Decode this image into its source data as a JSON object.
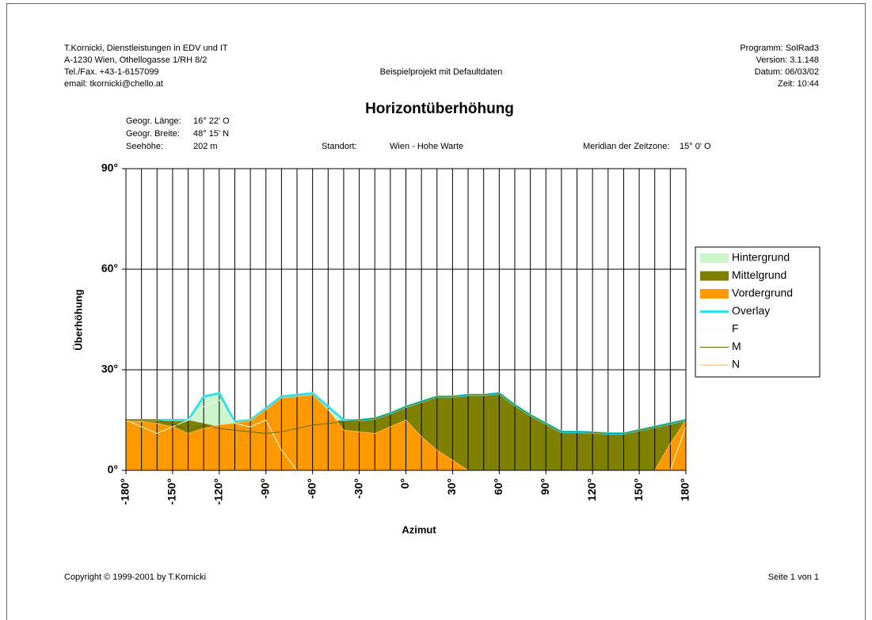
{
  "header": {
    "left": [
      "T.Kornicki, Dienstleistungen in EDV und IT",
      "A-1230 Wien, Othellogasse 1/RH 8/2",
      "Tel./Fax. +43-1-6157099",
      "email: tkornicki@chello.at"
    ],
    "center": "Beispielprojekt mit Defaultdaten",
    "right": [
      "Programm: SolRad3",
      "Version: 3.1.148",
      "Datum: 06/03/02",
      "Zeit: 10:44"
    ]
  },
  "info": {
    "laenge_label": "Geogr. Länge:",
    "laenge": "16° 22' O",
    "breite_label": "Geogr. Breite:",
    "breite": "48° 15' N",
    "hoehe_label": "Seehöhe:",
    "hoehe": "202 m",
    "standort_label": "Standort:",
    "standort": "Wien - Hohe Warte",
    "meridian_label": "Meridian der Zeitzone:",
    "meridian": "15° 0' O"
  },
  "chart_data": {
    "type": "area",
    "title": "Horizontüberhöhung",
    "xlabel": "Azimut",
    "ylabel": "Überhöhung",
    "x": [
      -180,
      -170,
      -160,
      -150,
      -140,
      -130,
      -120,
      -110,
      -100,
      -90,
      -80,
      -70,
      -60,
      -50,
      -40,
      -30,
      -20,
      -10,
      0,
      10,
      20,
      30,
      40,
      50,
      60,
      70,
      80,
      90,
      100,
      110,
      120,
      130,
      140,
      150,
      160,
      170,
      180
    ],
    "xlim": [
      -180,
      180
    ],
    "ylim": [
      0,
      90
    ],
    "xticks": [
      {
        "value": -180,
        "label": "-180°"
      },
      {
        "value": -150,
        "label": "-150°"
      },
      {
        "value": -120,
        "label": "-120°"
      },
      {
        "value": -90,
        "label": "-90°"
      },
      {
        "value": -60,
        "label": "-60°"
      },
      {
        "value": -30,
        "label": "-30°"
      },
      {
        "value": 0,
        "label": "0°"
      },
      {
        "value": 30,
        "label": "30°"
      },
      {
        "value": 60,
        "label": "60°"
      },
      {
        "value": 90,
        "label": "90°"
      },
      {
        "value": 120,
        "label": "120°"
      },
      {
        "value": 150,
        "label": "150°"
      },
      {
        "value": 180,
        "label": "180°"
      }
    ],
    "xgrid": [
      -180,
      -170,
      -160,
      -150,
      -140,
      -130,
      -120,
      -110,
      -100,
      -90,
      -80,
      -70,
      -60,
      -50,
      -40,
      -30,
      -20,
      -10,
      0,
      10,
      20,
      30,
      40,
      50,
      60,
      70,
      80,
      90,
      100,
      110,
      120,
      130,
      140,
      150,
      160,
      170,
      180
    ],
    "yticks": [
      {
        "value": 0,
        "label": "0°"
      },
      {
        "value": 30,
        "label": "30°"
      },
      {
        "value": 60,
        "label": "60°"
      },
      {
        "value": 90,
        "label": "90°"
      }
    ],
    "grid": true,
    "legend": "right",
    "series": [
      {
        "name": "Hintergrund",
        "color": "#ccf5cc",
        "style": "area",
        "values": [
          15,
          15,
          15,
          15,
          15,
          22,
          23,
          14.5,
          15,
          18.5,
          22,
          22.5,
          23,
          19,
          15,
          15,
          15.5,
          17,
          19,
          20.5,
          22,
          22,
          22.5,
          22.5,
          23,
          19.5,
          16.5,
          14,
          11.5,
          11.5,
          11.3,
          11,
          11,
          12,
          13,
          14,
          15
        ]
      },
      {
        "name": "Mittelgrund",
        "color": "#808000",
        "style": "area",
        "values": [
          15,
          15,
          15,
          15,
          15,
          14,
          13,
          12.5,
          12,
          11.5,
          12,
          13,
          14,
          14.5,
          15,
          15,
          15.5,
          17,
          19,
          20.5,
          22,
          22,
          22.5,
          22.5,
          23,
          19.5,
          16.5,
          14,
          11.5,
          11.5,
          11.3,
          11,
          11,
          12,
          13,
          14,
          15
        ]
      },
      {
        "name": "Vordergrund",
        "color": "#ff9900",
        "style": "area",
        "values": [
          14.5,
          14.5,
          14,
          13,
          11,
          12.5,
          13.5,
          14,
          15,
          18,
          21.5,
          22,
          22.5,
          18,
          12,
          11.5,
          11,
          13,
          15,
          10,
          6,
          3,
          0,
          0,
          0,
          0,
          0,
          0,
          0,
          0,
          0,
          0,
          0,
          0,
          0,
          8,
          15
        ]
      },
      {
        "name": "Overlay",
        "color": "#33e0e8",
        "style": "line",
        "width": 3,
        "values": [
          15,
          15,
          15,
          15,
          15,
          22,
          23,
          14.5,
          15,
          18.5,
          22,
          22.5,
          23,
          19,
          15,
          15,
          15.5,
          17,
          19,
          20.5,
          22,
          22,
          22.5,
          22.5,
          23,
          19.5,
          16.5,
          14,
          11.5,
          11.5,
          11.3,
          11,
          11,
          12,
          13,
          14,
          15
        ]
      },
      {
        "name": "F",
        "color": "#e6ffe6",
        "style": "line",
        "width": 1,
        "values": [
          15,
          13,
          11,
          13,
          15,
          19,
          21,
          14,
          13,
          15,
          6,
          0,
          0,
          0,
          0,
          0,
          0,
          0,
          0,
          0,
          0,
          0,
          0,
          0,
          0,
          0,
          0,
          0,
          0,
          0,
          0,
          0,
          0,
          0,
          0,
          0,
          13
        ]
      },
      {
        "name": "M",
        "color": "#666600",
        "style": "line",
        "width": 1,
        "values": [
          15,
          15,
          15,
          14,
          12,
          13.5,
          12.5,
          12,
          11.5,
          11,
          11.5,
          12.5,
          13.5,
          14,
          14.5,
          15,
          15.5,
          17,
          19,
          20.5,
          22,
          22,
          22.5,
          22.5,
          23,
          19.5,
          16.5,
          14,
          11.5,
          11.5,
          11.3,
          11,
          11,
          12,
          13,
          14,
          15
        ]
      },
      {
        "name": "N",
        "color": "#ffb347",
        "style": "line",
        "width": 1,
        "values": [
          14.5,
          14.5,
          14,
          13,
          11,
          12.5,
          13.5,
          14,
          15,
          18,
          21.5,
          22,
          22.5,
          18,
          12,
          11.5,
          11,
          13,
          15,
          10,
          6,
          3,
          0,
          0,
          0,
          0,
          0,
          0,
          0,
          0,
          0,
          0,
          0,
          0,
          0,
          8,
          15
        ]
      }
    ]
  },
  "footer": {
    "copyright": "Copyright © 1999-2001 by T.Kornicki",
    "page": "Seite 1 von 1"
  }
}
